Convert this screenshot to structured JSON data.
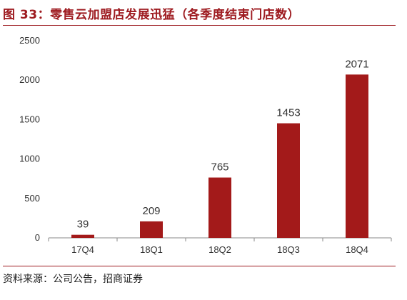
{
  "title": "图 33：零售云加盟店发展迅猛（各季度结束门店数）",
  "source": "资料来源：公司公告，招商证券",
  "colors": {
    "bar": "#a31a1a",
    "title": "#9e1b20",
    "axis": "#888888"
  },
  "chart_data": {
    "type": "bar",
    "categories": [
      "17Q4",
      "18Q1",
      "18Q2",
      "18Q3",
      "18Q4"
    ],
    "values": [
      39,
      209,
      765,
      1453,
      2071
    ],
    "yticks": [
      0,
      500,
      1000,
      1500,
      2000,
      2500
    ],
    "ylim": [
      0,
      2500
    ],
    "grid": false,
    "data_labels": true
  }
}
